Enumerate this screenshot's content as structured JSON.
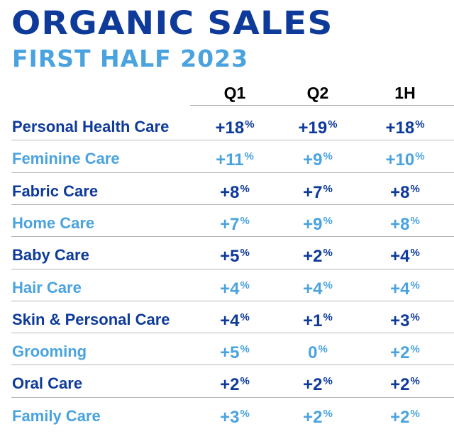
{
  "colors": {
    "dark_blue": "#0e3a9a",
    "light_blue": "#4aa3df"
  },
  "chart_data": {
    "type": "table",
    "title": "ORGANIC SALES",
    "subtitle": "FIRST HALF 2023",
    "columns": [
      "Q1",
      "Q2",
      "1H"
    ],
    "rows": [
      {
        "label": "Personal Health Care",
        "values": [
          "+18",
          "+19",
          "+18"
        ],
        "color": "dark"
      },
      {
        "label": "Feminine Care",
        "values": [
          "+11",
          "+9",
          "+10"
        ],
        "color": "light"
      },
      {
        "label": "Fabric Care",
        "values": [
          "+8",
          "+7",
          "+8"
        ],
        "color": "dark"
      },
      {
        "label": "Home Care",
        "values": [
          "+7",
          "+9",
          "+8"
        ],
        "color": "light"
      },
      {
        "label": "Baby Care",
        "values": [
          "+5",
          "+2",
          "+4"
        ],
        "color": "dark"
      },
      {
        "label": "Hair Care",
        "values": [
          "+4",
          "+4",
          "+4"
        ],
        "color": "light"
      },
      {
        "label": "Skin & Personal Care",
        "values": [
          "+4",
          "+1",
          "+3"
        ],
        "color": "dark"
      },
      {
        "label": "Grooming",
        "values": [
          "+5",
          "0",
          "+2"
        ],
        "color": "light"
      },
      {
        "label": "Oral Care",
        "values": [
          "+2",
          "+2",
          "+2"
        ],
        "color": "dark"
      },
      {
        "label": "Family Care",
        "values": [
          "+3",
          "+2",
          "+2"
        ],
        "color": "light"
      }
    ],
    "unit": "%"
  }
}
